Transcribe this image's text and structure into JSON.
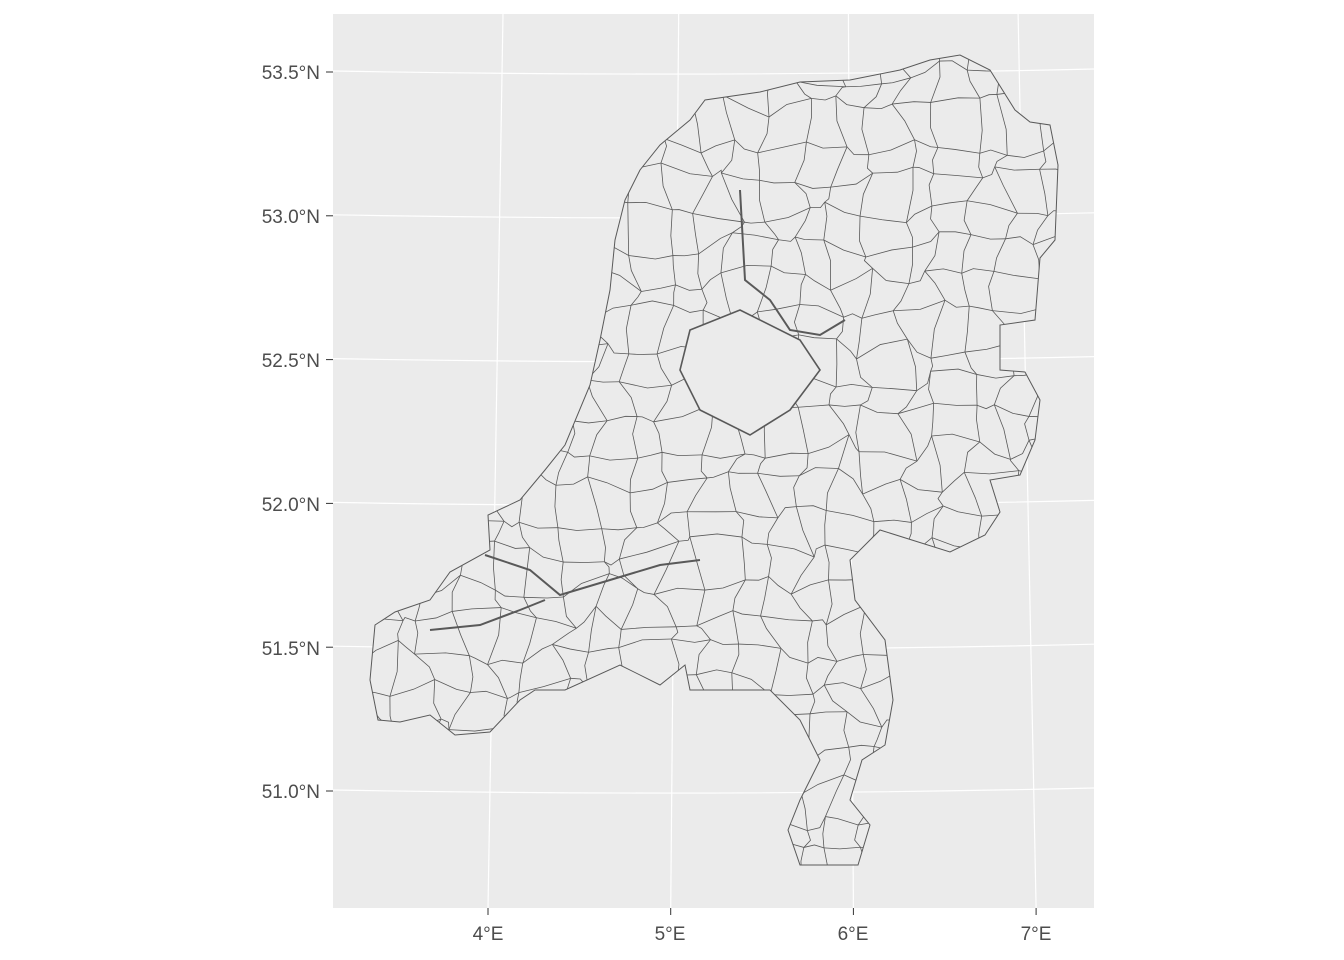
{
  "map": {
    "type": "choropleth-outline",
    "region": "Netherlands municipalities",
    "panel_background": "#EBEBEB",
    "grid_color": "#FFFFFF",
    "fill_color": "#EBEBEB",
    "border_color": "#595959",
    "y_ticks": [
      "53.5°N",
      "53.0°N",
      "52.5°N",
      "52.0°N",
      "51.5°N",
      "51.0°N"
    ],
    "x_ticks": [
      "4°E",
      "5°E",
      "6°E",
      "7°E"
    ],
    "lat_values": [
      53.5,
      53.0,
      52.5,
      52.0,
      51.5,
      51.0
    ],
    "lon_values": [
      4,
      5,
      6,
      7
    ]
  }
}
